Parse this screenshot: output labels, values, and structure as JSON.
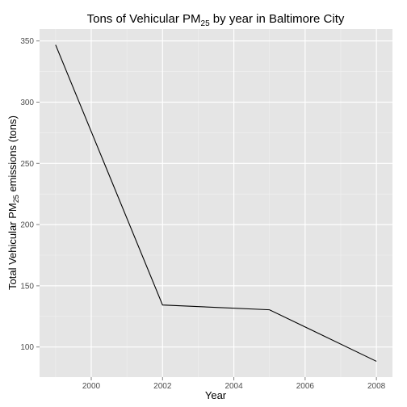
{
  "chart_data": {
    "type": "line",
    "title": {
      "prefix": "Tons of Vehicular PM",
      "subscript": "25",
      "suffix": " by year in Baltimore City"
    },
    "xlabel": "Year",
    "ylabel": {
      "prefix": "Total Vehicular PM",
      "subscript": "25",
      "suffix": " emissions (tons)"
    },
    "x": [
      1999,
      2002,
      2005,
      2008
    ],
    "series": [
      {
        "values": [
          346.8,
          134.3,
          130.4,
          88.3
        ]
      }
    ],
    "xlim": [
      1998.55,
      2008.45
    ],
    "ylim": [
      75.4,
      359.7
    ],
    "xticks": [
      2000,
      2002,
      2004,
      2006,
      2008
    ],
    "xtick_labels": [
      "2000",
      "2002",
      "2004",
      "2006",
      "2008"
    ],
    "yticks": [
      100,
      150,
      200,
      250,
      300,
      350
    ],
    "ytick_labels": [
      "100",
      "150",
      "200",
      "250",
      "300",
      "350"
    ],
    "grid": true,
    "panel_color": "#e5e5e5",
    "line_color": "#000000"
  }
}
